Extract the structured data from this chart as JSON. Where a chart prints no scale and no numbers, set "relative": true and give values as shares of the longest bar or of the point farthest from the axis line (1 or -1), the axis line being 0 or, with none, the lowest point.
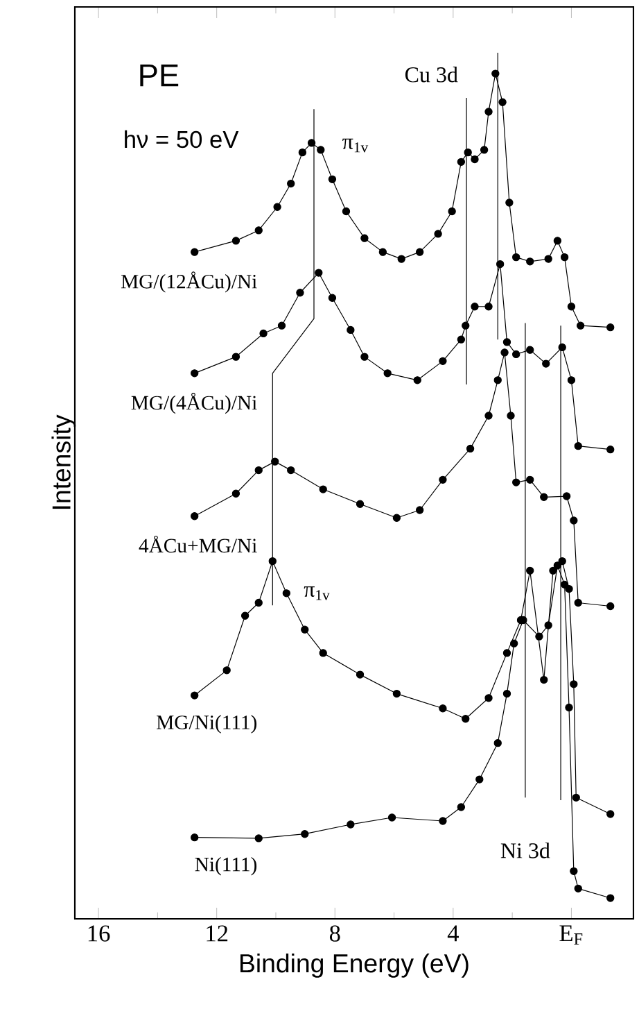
{
  "chart_data": {
    "type": "line",
    "relative": true,
    "xlabel": "Binding Energy (eV)",
    "ylabel": "Intensity",
    "xlim": [
      16.8,
      -2.1
    ],
    "xticks": [
      16,
      12,
      8,
      4,
      {
        "value": 0,
        "label": "E$_{F}$"
      }
    ],
    "tick_labels": "x",
    "marker": "circle",
    "series": [
      {
        "name": "MG/(12ÅCu)/Ni",
        "color": "#000000",
        "x": [
          12.75,
          11.35,
          10.58,
          9.95,
          9.49,
          9.1,
          8.79,
          8.48,
          8.09,
          7.62,
          7.0,
          6.38,
          5.75,
          5.13,
          4.51,
          4.04,
          3.73,
          3.5,
          3.27,
          2.95,
          2.8,
          2.57,
          2.33,
          2.1,
          1.87,
          1.4,
          0.78,
          0.47,
          0.23,
          0.0,
          -0.31,
          -1.32
        ],
        "values": [
          0.77,
          0.783,
          0.795,
          0.822,
          0.849,
          0.885,
          0.896,
          0.888,
          0.854,
          0.817,
          0.786,
          0.77,
          0.762,
          0.77,
          0.791,
          0.817,
          0.874,
          0.885,
          0.877,
          0.888,
          0.932,
          0.976,
          0.943,
          0.827,
          0.764,
          0.759,
          0.762,
          0.783,
          0.764,
          0.707,
          0.685,
          0.683
        ]
      },
      {
        "name": "MG/(4ÅCu)/Ni",
        "color": "#000000",
        "x": [
          12.75,
          11.35,
          10.42,
          9.8,
          9.18,
          8.55,
          8.09,
          7.47,
          7.0,
          6.22,
          5.21,
          4.35,
          3.73,
          3.58,
          3.27,
          2.8,
          2.41,
          2.18,
          1.87,
          1.4,
          0.86,
          0.31,
          0.0,
          -0.23,
          -1.32
        ],
        "values": [
          0.63,
          0.649,
          0.676,
          0.685,
          0.723,
          0.746,
          0.717,
          0.68,
          0.649,
          0.63,
          0.622,
          0.644,
          0.669,
          0.685,
          0.707,
          0.707,
          0.756,
          0.666,
          0.652,
          0.657,
          0.641,
          0.66,
          0.622,
          0.546,
          0.542
        ]
      },
      {
        "name": "4ÅCu+MG/Ni",
        "color": "#000000",
        "x": [
          12.75,
          11.35,
          10.58,
          10.03,
          9.49,
          8.4,
          7.15,
          5.91,
          5.13,
          4.35,
          3.42,
          2.8,
          2.49,
          2.26,
          2.05,
          1.87,
          1.4,
          0.93,
          0.16,
          -0.08,
          -0.23,
          -1.32
        ],
        "values": [
          0.465,
          0.491,
          0.518,
          0.528,
          0.518,
          0.496,
          0.479,
          0.463,
          0.472,
          0.507,
          0.543,
          0.581,
          0.622,
          0.654,
          0.581,
          0.504,
          0.507,
          0.487,
          0.488,
          0.46,
          0.365,
          0.361
        ]
      },
      {
        "name": "MG/Ni(111)",
        "color": "#000000",
        "x": [
          12.75,
          11.66,
          11.04,
          10.58,
          10.11,
          9.64,
          9.02,
          8.4,
          7.15,
          5.91,
          4.35,
          3.58,
          2.8,
          2.18,
          1.71,
          1.4,
          0.93,
          0.62,
          0.31,
          0.08,
          -0.08,
          -0.16,
          -1.32
        ],
        "values": [
          0.258,
          0.287,
          0.35,
          0.365,
          0.413,
          0.376,
          0.334,
          0.307,
          0.282,
          0.26,
          0.243,
          0.231,
          0.255,
          0.307,
          0.345,
          0.402,
          0.276,
          0.402,
          0.413,
          0.381,
          0.271,
          0.14,
          0.121
        ]
      },
      {
        "name": "Ni(111)",
        "color": "#000000",
        "x": [
          12.75,
          10.58,
          9.02,
          7.47,
          6.07,
          4.35,
          3.73,
          3.11,
          2.49,
          2.18,
          1.94,
          1.63,
          1.09,
          0.78,
          0.47,
          0.23,
          0.08,
          -0.08,
          -0.23,
          -1.32
        ],
        "values": [
          0.094,
          0.093,
          0.098,
          0.109,
          0.117,
          0.113,
          0.129,
          0.161,
          0.203,
          0.26,
          0.318,
          0.345,
          0.326,
          0.339,
          0.408,
          0.386,
          0.244,
          0.055,
          0.035,
          0.024
        ]
      },
      {
        "type": "line",
        "marker": "none",
        "color": "#000000",
        "x": [
          8.71,
          8.71,
          10.11,
          10.11
        ],
        "values": [
          0.935,
          0.693,
          0.63,
          0.362
        ]
      },
      {
        "type": "line",
        "marker": "none",
        "color": "#000000",
        "x": [
          3.55,
          3.55
        ],
        "values": [
          0.948,
          0.617
        ]
      },
      {
        "type": "line",
        "marker": "none",
        "color": "#000000",
        "x": [
          2.49,
          2.49
        ],
        "values": [
          1.0,
          0.669
        ]
      },
      {
        "type": "line",
        "marker": "none",
        "color": "#000000",
        "x": [
          1.56,
          1.56
        ],
        "values": [
          0.688,
          0.14
        ]
      },
      {
        "type": "line",
        "marker": "none",
        "color": "#000000",
        "x": [
          0.36,
          0.36
        ],
        "values": [
          0.685,
          0.137
        ]
      }
    ],
    "annotations": [
      "PE",
      "hν = 50 eV",
      "Cu 3d",
      "π$_{1v}$",
      "π$_{1v}$",
      "Ni 3d"
    ]
  }
}
